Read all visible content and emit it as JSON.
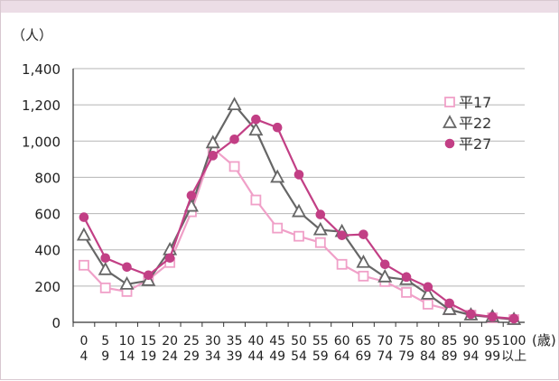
{
  "chart_data": {
    "type": "line",
    "y_unit": "（人）",
    "x_unit": "(歳)",
    "categories": [
      {
        "top": "0",
        "bottom": "4"
      },
      {
        "top": "5",
        "bottom": "9"
      },
      {
        "top": "10",
        "bottom": "14"
      },
      {
        "top": "15",
        "bottom": "19"
      },
      {
        "top": "20",
        "bottom": "24"
      },
      {
        "top": "25",
        "bottom": "29"
      },
      {
        "top": "30",
        "bottom": "34"
      },
      {
        "top": "35",
        "bottom": "39"
      },
      {
        "top": "40",
        "bottom": "44"
      },
      {
        "top": "45",
        "bottom": "49"
      },
      {
        "top": "50",
        "bottom": "54"
      },
      {
        "top": "55",
        "bottom": "59"
      },
      {
        "top": "60",
        "bottom": "64"
      },
      {
        "top": "65",
        "bottom": "69"
      },
      {
        "top": "70",
        "bottom": "74"
      },
      {
        "top": "75",
        "bottom": "79"
      },
      {
        "top": "80",
        "bottom": "84"
      },
      {
        "top": "85",
        "bottom": "89"
      },
      {
        "top": "90",
        "bottom": "94"
      },
      {
        "top": "95",
        "bottom": "99"
      },
      {
        "top": "100",
        "bottom": "以上"
      }
    ],
    "ylim": [
      0,
      1400
    ],
    "yticks": [
      {
        "value": 0,
        "label": "0"
      },
      {
        "value": 200,
        "label": "200"
      },
      {
        "value": 400,
        "label": "400"
      },
      {
        "value": 600,
        "label": "600"
      },
      {
        "value": 800,
        "label": "800"
      },
      {
        "value": 1000,
        "label": "1,000"
      },
      {
        "value": 1200,
        "label": "1,200"
      },
      {
        "value": 1400,
        "label": "1,400"
      }
    ],
    "grid": "horizontal",
    "legend_position": "right",
    "series": [
      {
        "name": "平17",
        "marker": "square-open",
        "color": "#f0a0c8",
        "values": [
          315,
          190,
          170,
          235,
          330,
          610,
          960,
          860,
          675,
          520,
          475,
          440,
          320,
          255,
          225,
          165,
          100,
          70,
          40,
          25,
          15
        ]
      },
      {
        "name": "平22",
        "marker": "triangle-open",
        "color": "#666666",
        "values": [
          480,
          290,
          210,
          230,
          400,
          640,
          990,
          1200,
          1060,
          800,
          610,
          510,
          500,
          330,
          250,
          235,
          155,
          70,
          40,
          30,
          15
        ]
      },
      {
        "name": "平27",
        "marker": "circle-filled",
        "color": "#c23f85",
        "values": [
          580,
          355,
          305,
          260,
          355,
          700,
          920,
          1010,
          1120,
          1075,
          815,
          595,
          480,
          485,
          320,
          250,
          195,
          105,
          45,
          30,
          20
        ]
      }
    ]
  }
}
